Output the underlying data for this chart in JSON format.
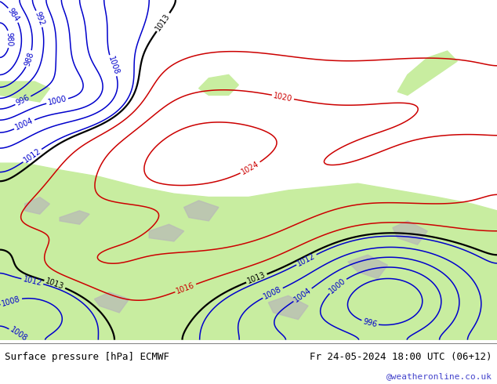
{
  "fig_width": 6.34,
  "fig_height": 4.9,
  "dpi": 100,
  "bottom_label_left": "Surface pressure [hPa] ECMWF",
  "bottom_label_right": "Fr 24-05-2024 18:00 UTC (06+12)",
  "bottom_label_url": "@weatheronline.co.uk",
  "bottom_label_color": "#000000",
  "bottom_url_color": "#4444cc",
  "contour_blue_color": "#0000cc",
  "contour_red_color": "#cc0000",
  "contour_black_color": "#000000",
  "font_size_bottom": 9,
  "font_size_url": 8,
  "sea_color": "#d2d2d2",
  "land_color": "#c8eda0",
  "gray_land_color": "#b8b8b8",
  "levels_blue": [
    980,
    984,
    988,
    992,
    996,
    1000,
    1004,
    1008,
    1012
  ],
  "levels_black": [
    1013
  ],
  "levels_red": [
    1016,
    1020,
    1024
  ],
  "lw_blue": 1.1,
  "lw_black": 1.6,
  "lw_red": 1.1,
  "label_fontsize": 7
}
